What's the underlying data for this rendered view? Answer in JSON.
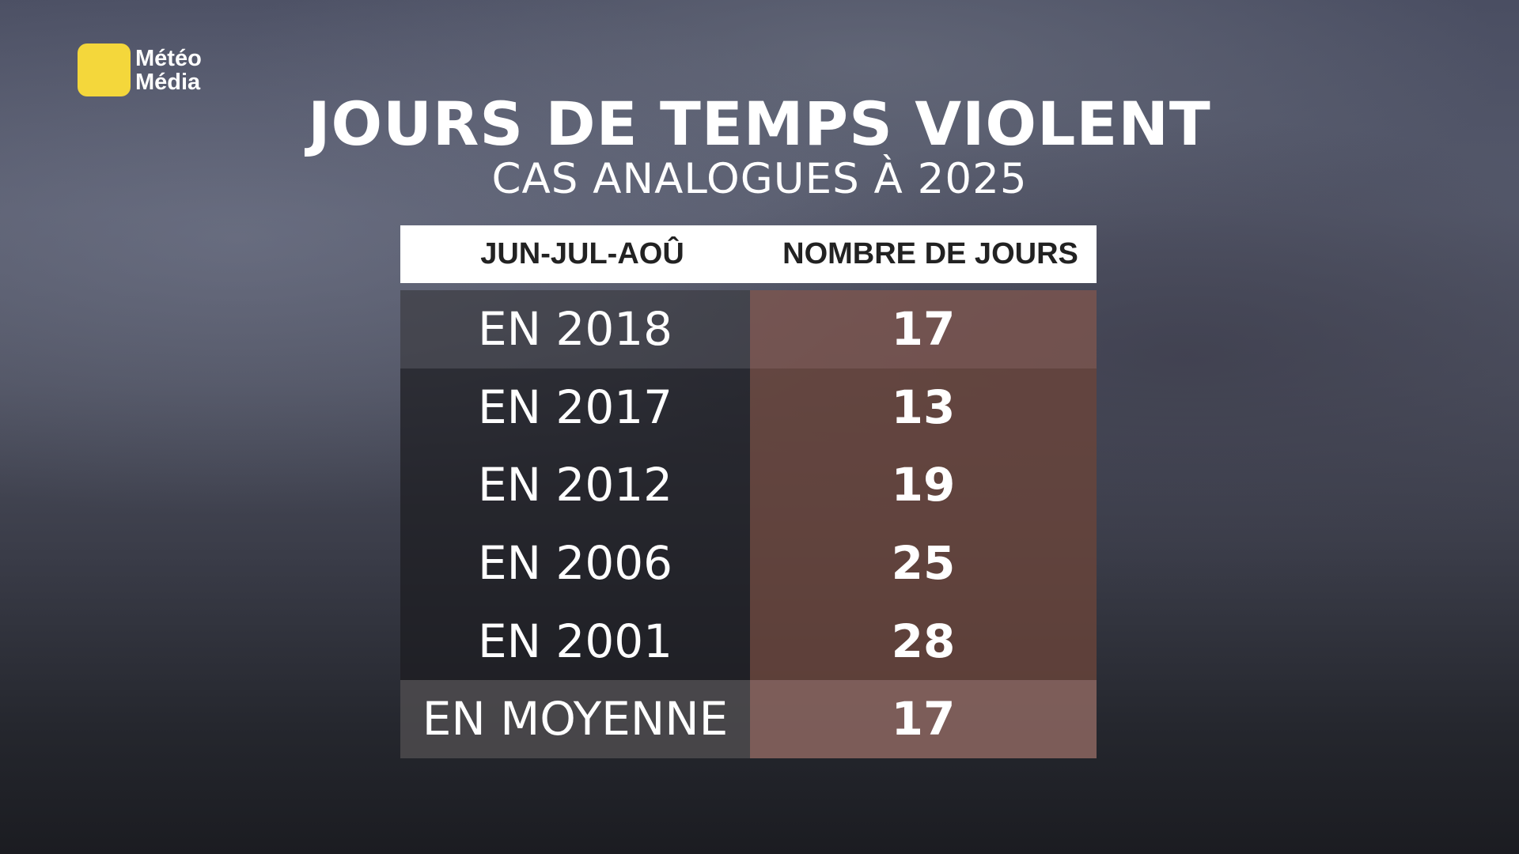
{
  "logo": {
    "line1": "Météo",
    "line2": "Média"
  },
  "header": {
    "title": "JOURS DE TEMPS VIOLENT",
    "subtitle": "CAS ANALOGUES À 2025"
  },
  "table": {
    "columns": [
      "JUN-JUL-AOÛ",
      "NOMBRE DE JOURS"
    ],
    "rows": [
      [
        "EN 2018",
        17
      ],
      [
        "EN 2017",
        13
      ],
      [
        "EN 2012",
        19
      ],
      [
        "EN 2006",
        25
      ],
      [
        "EN 2001",
        28
      ],
      [
        "EN MOYENNE",
        17
      ]
    ]
  }
}
